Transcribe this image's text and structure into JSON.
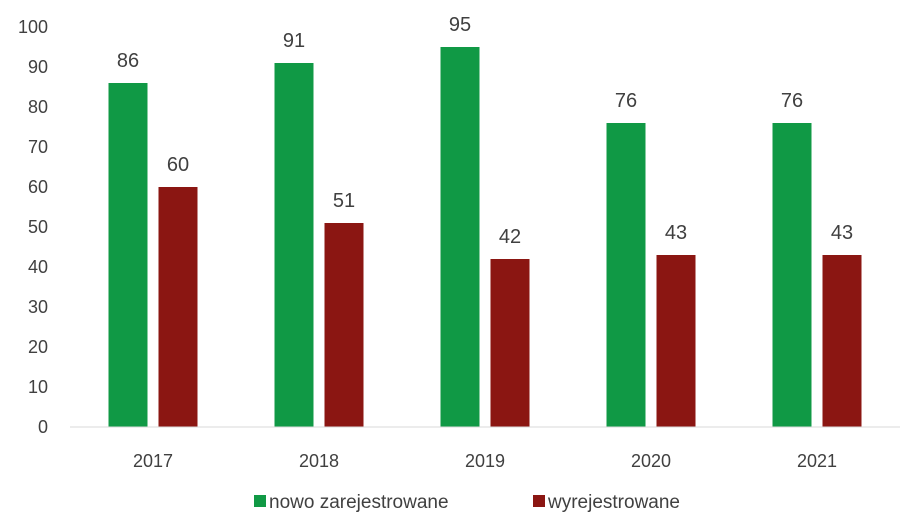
{
  "chart_data": {
    "type": "bar",
    "title": "",
    "xlabel": "",
    "ylabel": "",
    "categories": [
      "2017",
      "2018",
      "2019",
      "2020",
      "2021"
    ],
    "series": [
      {
        "name": "nowo zarejestrowane",
        "values": [
          86,
          91,
          95,
          76,
          76
        ],
        "color": "#109945"
      },
      {
        "name": "wyrejestrowane",
        "values": [
          60,
          51,
          42,
          43,
          43
        ],
        "color": "#8b1612"
      }
    ],
    "ylim": [
      0,
      100
    ],
    "yticks": [
      0,
      10,
      20,
      30,
      40,
      50,
      60,
      70,
      80,
      90,
      100
    ],
    "grid": false,
    "data_labels": true,
    "legend_position": "bottom",
    "axis_color": "#d9d9d9",
    "text_color": "#404040"
  }
}
